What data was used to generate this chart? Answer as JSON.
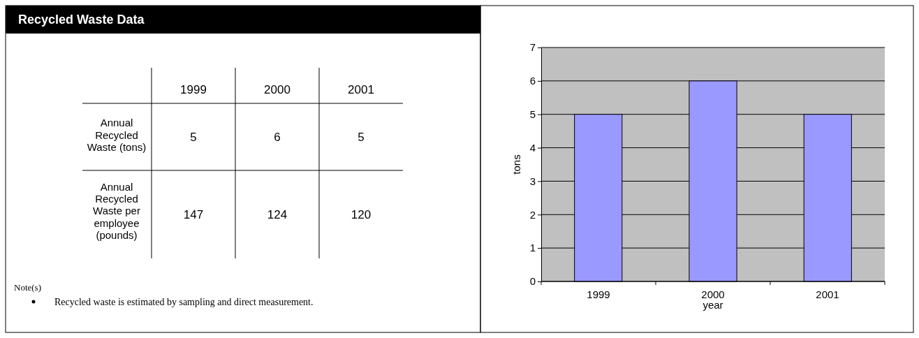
{
  "chart_data": [
    {
      "type": "other",
      "title": "Recycled Waste Data",
      "categories": [
        "1999",
        "2000",
        "2001"
      ],
      "data_labels": true,
      "series": [
        {
          "name": "Annual Recycled Waste (tons)",
          "values": [
            5,
            6,
            5
          ]
        },
        {
          "name": "Annual Recycled Waste per employee (pounds)",
          "values": [
            147,
            124,
            120
          ]
        }
      ],
      "annotations": [
        "Note(s)",
        "Recycled waste is estimated by sampling and direct measurement."
      ]
    },
    {
      "type": "bar",
      "categories": [
        "1999",
        "2000",
        "2001"
      ],
      "values": [
        5,
        6,
        5
      ],
      "color": "#9999ff",
      "ylim": [
        0,
        7
      ],
      "yticks": [
        0,
        1,
        2,
        3,
        4,
        5,
        6,
        7
      ],
      "grid": "y",
      "xlabel": "year",
      "ylabel": "tons"
    }
  ]
}
